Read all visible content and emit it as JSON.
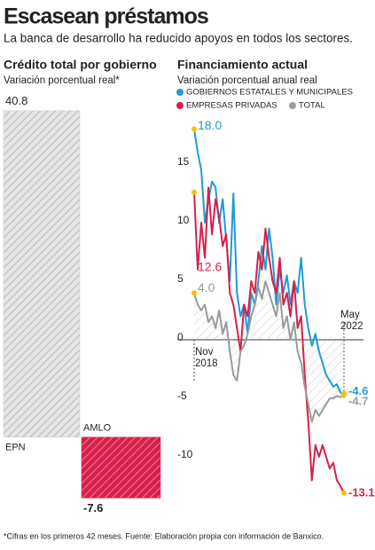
{
  "title": "Escasean préstamos",
  "subtitle": "La banca de desarrollo ha reducido apoyos en todos los sectores.",
  "footnote": "*Cifras en los primeros 42 meses. Fuente: Elaboración propia con información de Banxico.",
  "chart_data": [
    {
      "type": "bar",
      "title": "Crédito total por gobierno",
      "subtitle": "Variación porcentual real*",
      "categories": [
        "EPN",
        "AMLO"
      ],
      "values": [
        40.8,
        -7.6
      ],
      "colors": [
        "#c8c8c8",
        "#d6204a"
      ],
      "ylim": [
        -8,
        41
      ]
    },
    {
      "type": "line",
      "title": "Financiamiento actual",
      "subtitle": "Variación porcentual anual real",
      "categories": [
        "Nov 2018",
        null,
        null,
        null,
        null,
        null,
        null,
        null,
        null,
        null,
        null,
        null,
        null,
        null,
        null,
        null,
        null,
        null,
        null,
        null,
        null,
        null,
        null,
        null,
        null,
        null,
        null,
        null,
        null,
        null,
        null,
        null,
        null,
        null,
        null,
        null,
        null,
        null,
        null,
        null,
        null,
        null,
        "May 2022"
      ],
      "ylim": [
        -14,
        19
      ],
      "yticks": [
        -10,
        -5,
        0,
        5,
        10,
        15
      ],
      "series": [
        {
          "name": "GOBIERNOS ESTATALES Y MUNICIPALES",
          "color": "#1f9ad6",
          "values": [
            18.0,
            16,
            14.5,
            10,
            12,
            13.5,
            13,
            10,
            12,
            8.5,
            5,
            12.5,
            4,
            2,
            3,
            0.5,
            4,
            3,
            5,
            8,
            6,
            9.5,
            7,
            3,
            6,
            4,
            5.5,
            3,
            5,
            4,
            7,
            3,
            1,
            -0.5,
            0.5,
            -1,
            -2,
            -3,
            -3.5,
            -4,
            -3.8,
            -4.5,
            -4.6
          ],
          "value_labels": [
            "18.0",
            null,
            null,
            null,
            null,
            null,
            null,
            null,
            null,
            null,
            null,
            null,
            null,
            null,
            null,
            null,
            null,
            null,
            null,
            null,
            null,
            null,
            null,
            null,
            null,
            null,
            null,
            null,
            null,
            null,
            null,
            null,
            null,
            null,
            null,
            null,
            null,
            null,
            null,
            null,
            null,
            null,
            "-4.6"
          ]
        },
        {
          "name": "EMPRESAS PRIVADAS",
          "color": "#d6204a",
          "values": [
            12.6,
            6,
            10,
            7,
            13,
            9,
            12,
            10.5,
            8,
            9,
            4,
            3,
            1,
            -1,
            3,
            2,
            5,
            4,
            7.5,
            6,
            9.5,
            7,
            5,
            4,
            7,
            3,
            4,
            2,
            5,
            1,
            2,
            -3,
            -7,
            -12,
            -9,
            -10,
            -9,
            -10,
            -11,
            -10.5,
            -12,
            -12.5,
            -13.1
          ],
          "value_labels": [
            "12.6",
            null,
            null,
            null,
            null,
            null,
            null,
            null,
            null,
            null,
            null,
            null,
            null,
            null,
            null,
            null,
            null,
            null,
            null,
            null,
            null,
            null,
            null,
            null,
            null,
            null,
            null,
            null,
            null,
            null,
            null,
            null,
            null,
            null,
            null,
            null,
            null,
            null,
            null,
            null,
            null,
            null,
            "-13.1"
          ]
        },
        {
          "name": "TOTAL",
          "color": "#9a9a9a",
          "values": [
            4.0,
            3,
            2.5,
            3,
            1.5,
            2,
            1,
            2.5,
            0.5,
            1.5,
            -1,
            -3,
            -3.5,
            -1,
            -0.5,
            0.5,
            2,
            3,
            4.5,
            3.5,
            5,
            4,
            3,
            2,
            4,
            1,
            2,
            0,
            1.5,
            -1,
            -2,
            -4,
            -5.5,
            -7,
            -6,
            -6.5,
            -6,
            -5.5,
            -5,
            -5,
            -4.8,
            -4.9,
            -4.7
          ],
          "value_labels": [
            "4.0",
            null,
            null,
            null,
            null,
            null,
            null,
            null,
            null,
            null,
            null,
            null,
            null,
            null,
            null,
            null,
            null,
            null,
            null,
            null,
            null,
            null,
            null,
            null,
            null,
            null,
            null,
            null,
            null,
            null,
            null,
            null,
            null,
            null,
            null,
            null,
            null,
            null,
            null,
            null,
            null,
            null,
            "-4.7"
          ]
        }
      ]
    }
  ]
}
